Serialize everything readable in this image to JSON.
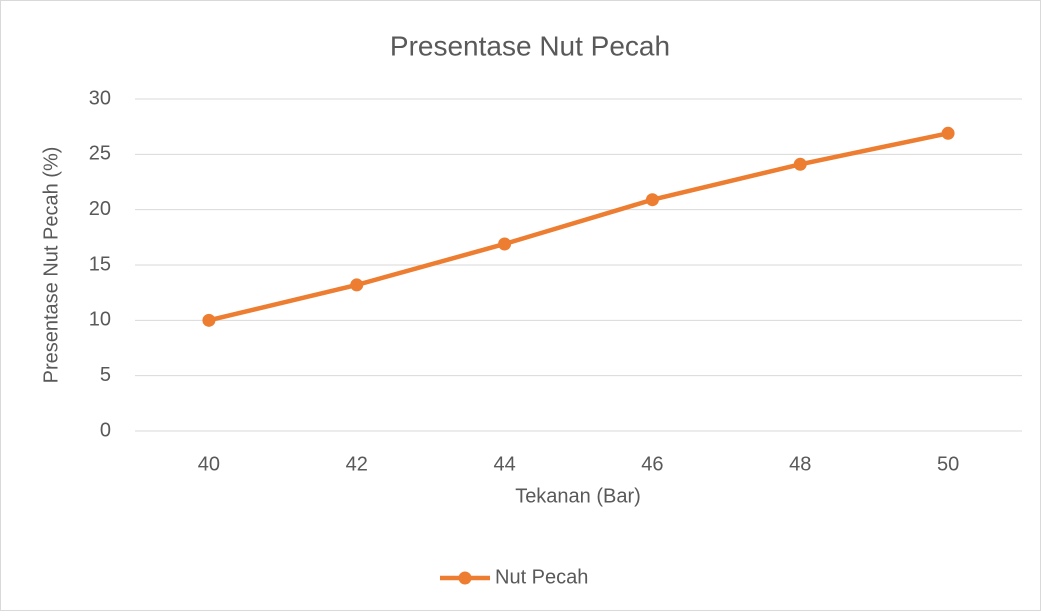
{
  "chart_data": {
    "type": "line",
    "title": "Presentase Nut Pecah",
    "x_label": "Tekanan (Bar)",
    "y_label": "Presentase Nut Pecah (%)",
    "categories": [
      "40",
      "42",
      "44",
      "46",
      "48",
      "50"
    ],
    "series": [
      {
        "name": "Nut Pecah",
        "color": "#ed7d31",
        "values": [
          10,
          13.2,
          16.9,
          20.9,
          24.1,
          26.9
        ]
      }
    ],
    "ylim": [
      0,
      30
    ],
    "yticks": [
      0,
      5,
      10,
      15,
      20,
      25,
      30
    ],
    "grid": true,
    "legend": "bottom"
  }
}
